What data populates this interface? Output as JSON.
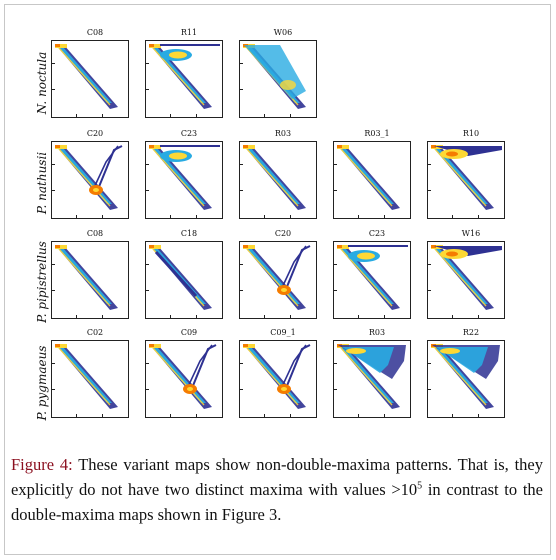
{
  "figure": {
    "rows": [
      {
        "species": "N. noctula",
        "maps": [
          "C08",
          "R11",
          "W06"
        ]
      },
      {
        "species": "P. nathusii",
        "maps": [
          "C20",
          "C23",
          "R03",
          "R03_1",
          "R10"
        ]
      },
      {
        "species": "P. pipistrellus",
        "maps": [
          "C08",
          "C18",
          "C20",
          "C23",
          "W16"
        ]
      },
      {
        "species": "P. pygmaeus",
        "maps": [
          "C02",
          "C09",
          "C09_1",
          "R03",
          "R22"
        ]
      }
    ],
    "palette": {
      "frame": "#c7c7c7",
      "axis": "#222222",
      "map_low": "#2e3192",
      "map_mid": "#29abe2",
      "map_high": "#fdd835",
      "map_peak": "#f57c00",
      "caption_label": "#8b0f1f"
    }
  },
  "caption": {
    "label": "Figure 4:",
    "text_before_exponent": "These variant maps show non-double-maxima patterns. That is, they explicitly do not have two distinct maxima with values >10",
    "exponent": "5",
    "text_after_exponent": " in contrast to the double-maxima maps shown in Figure 3."
  }
}
